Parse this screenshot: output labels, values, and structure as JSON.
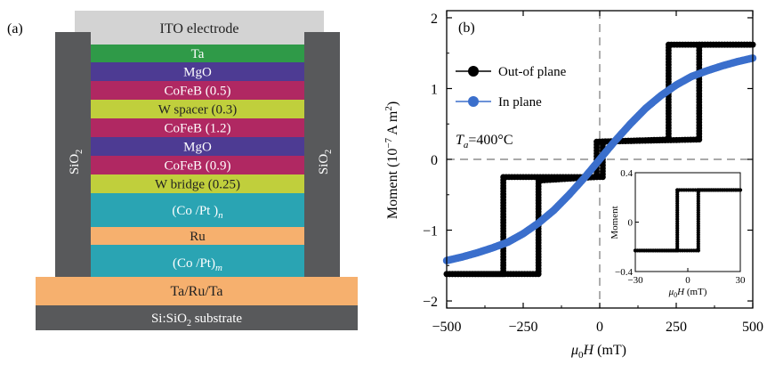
{
  "panel_a": {
    "label": "(a)",
    "top_electrode": "ITO electrode",
    "side_label": "SiO",
    "side_label_sub": "2",
    "layers": [
      {
        "label": "Ta",
        "color": "#2f9a48",
        "text_color": "#ffffff"
      },
      {
        "label": "MgO",
        "color": "#4d3b93",
        "text_color": "#ffffff"
      },
      {
        "label": "CoFeB (0.5)",
        "color": "#b02862",
        "text_color": "#ffffff"
      },
      {
        "label": "W spacer (0.3)",
        "color": "#c0cf3c",
        "text_color": "#222222"
      },
      {
        "label": "CoFeB (1.2)",
        "color": "#b02862",
        "text_color": "#ffffff"
      },
      {
        "label": "MgO",
        "color": "#4d3b93",
        "text_color": "#ffffff"
      },
      {
        "label": "CoFeB (0.9)",
        "color": "#b02862",
        "text_color": "#ffffff"
      },
      {
        "label": "W bridge (0.25)",
        "color": "#c0cf3c",
        "text_color": "#222222"
      },
      {
        "label": "(Co /Pt )",
        "sub": "n",
        "color": "#2aa4b3",
        "text_color": "#ffffff"
      },
      {
        "label": "Ru",
        "color": "#f6b06e",
        "text_color": "#222222"
      },
      {
        "label": "(Co /Pt)",
        "sub": "m",
        "color": "#2aa4b3",
        "text_color": "#ffffff"
      }
    ],
    "bottom_layer": "Ta/Ru/Ta",
    "substrate": "Si:SiO",
    "substrate_sub": "2",
    "substrate_suffix": " substrate",
    "colors": {
      "ito": "#d3d3d3",
      "side": "#58595b",
      "bottom": "#f6b06e",
      "substrate": "#58595b"
    }
  },
  "chart_data": {
    "type": "line",
    "panel_label": "(b)",
    "xlabel": "μ0H (mT)",
    "ylabel": "Moment (10−7 A m2)",
    "xlim": [
      -500,
      500
    ],
    "ylim": [
      -2.1,
      2.1
    ],
    "xticks": [
      -500,
      -250,
      0,
      250,
      500
    ],
    "xtick_labels": [
      "−500",
      "−250",
      "0",
      "250",
      "500"
    ],
    "yticks": [
      -2,
      -1,
      0,
      1,
      2
    ],
    "ytick_labels": [
      "−2",
      "−1",
      "0",
      "1",
      "2"
    ],
    "annotation": "Ta=400°C",
    "legend": {
      "position": "top-left"
    },
    "series": [
      {
        "name": "Out-of plane",
        "color": "#000000",
        "marker": "circle",
        "sweep_up": [
          [
            -500,
            -1.62
          ],
          [
            -300,
            -1.62
          ],
          [
            -200,
            -1.62
          ],
          [
            -200,
            -0.3
          ],
          [
            -10,
            -0.25
          ],
          [
            -10,
            0.25
          ],
          [
            225,
            0.28
          ],
          [
            225,
            1.62
          ],
          [
            500,
            1.62
          ]
        ],
        "sweep_down": [
          [
            500,
            1.62
          ],
          [
            325,
            1.62
          ],
          [
            325,
            0.28
          ],
          [
            10,
            0.25
          ],
          [
            10,
            -0.25
          ],
          [
            -315,
            -0.25
          ],
          [
            -315,
            -1.62
          ],
          [
            -500,
            -1.62
          ]
        ]
      },
      {
        "name": "In plane",
        "color": "#3b6fcc",
        "marker": "circle",
        "x": [
          -500,
          -450,
          -400,
          -350,
          -300,
          -250,
          -200,
          -150,
          -100,
          -50,
          0,
          50,
          100,
          150,
          200,
          250,
          300,
          350,
          400,
          450,
          500
        ],
        "y": [
          -1.43,
          -1.38,
          -1.32,
          -1.25,
          -1.17,
          -1.05,
          -0.9,
          -0.72,
          -0.5,
          -0.26,
          0.0,
          0.26,
          0.5,
          0.72,
          0.9,
          1.05,
          1.17,
          1.25,
          1.32,
          1.38,
          1.43
        ]
      }
    ],
    "inset": {
      "xlim": [
        -30,
        30
      ],
      "ylim": [
        -0.4,
        0.4
      ],
      "xticks": [
        -30,
        0,
        30
      ],
      "xtick_labels": [
        "−30",
        "0",
        "30"
      ],
      "yticks": [
        -0.4,
        0,
        0.4
      ],
      "ytick_labels": [
        "−0.4",
        "0",
        "0.4"
      ],
      "xlabel": "μ0H (mT)",
      "ylabel": "Moment",
      "sweep_up": [
        [
          -30,
          -0.23
        ],
        [
          6,
          -0.23
        ],
        [
          6,
          0.26
        ],
        [
          30,
          0.26
        ]
      ],
      "sweep_down": [
        [
          30,
          0.26
        ],
        [
          -6,
          0.26
        ],
        [
          -6,
          -0.23
        ],
        [
          -30,
          -0.23
        ]
      ]
    }
  }
}
